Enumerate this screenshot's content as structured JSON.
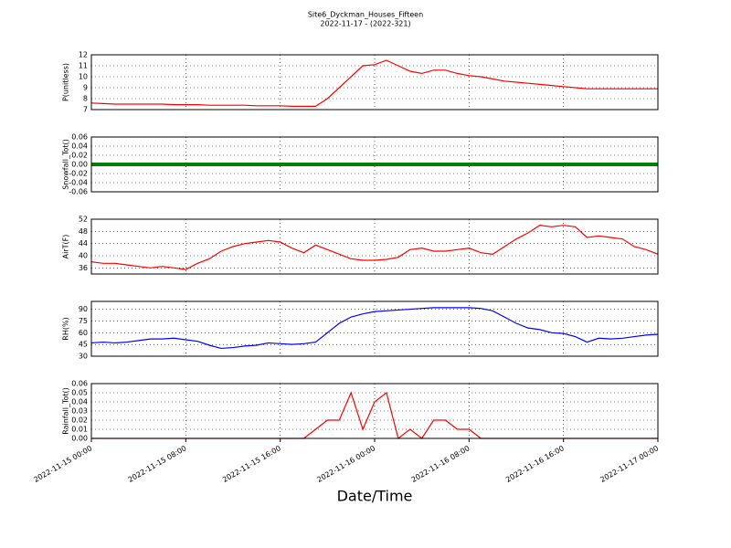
{
  "chart_data": [
    {
      "type": "line",
      "title": "Site6_Dyckman_Houses_Fifteen",
      "subtitle": "2022-11-17 - (2022-321)",
      "ylabel": "P(unitless)",
      "ylim": [
        7,
        12
      ],
      "yticks": [
        7,
        8,
        9,
        10,
        11,
        12
      ],
      "grid": true,
      "x": [
        "2022-11-15 00:00",
        "2022-11-15 01:00",
        "2022-11-15 02:00",
        "2022-11-15 03:00",
        "2022-11-15 04:00",
        "2022-11-15 05:00",
        "2022-11-15 06:00",
        "2022-11-15 07:00",
        "2022-11-15 08:00",
        "2022-11-15 09:00",
        "2022-11-15 10:00",
        "2022-11-15 11:00",
        "2022-11-15 12:00",
        "2022-11-15 13:00",
        "2022-11-15 14:00",
        "2022-11-15 15:00",
        "2022-11-15 16:00",
        "2022-11-15 17:00",
        "2022-11-15 18:00",
        "2022-11-15 19:00",
        "2022-11-15 20:00",
        "2022-11-15 21:00",
        "2022-11-15 22:00",
        "2022-11-15 23:00",
        "2022-11-16 00:00",
        "2022-11-16 01:00",
        "2022-11-16 02:00",
        "2022-11-16 03:00",
        "2022-11-16 04:00",
        "2022-11-16 05:00",
        "2022-11-16 06:00",
        "2022-11-16 07:00",
        "2022-11-16 08:00",
        "2022-11-16 09:00",
        "2022-11-16 10:00",
        "2022-11-16 11:00",
        "2022-11-16 12:00",
        "2022-11-16 13:00",
        "2022-11-16 14:00",
        "2022-11-16 15:00",
        "2022-11-16 16:00",
        "2022-11-16 17:00",
        "2022-11-16 18:00",
        "2022-11-16 19:00",
        "2022-11-16 20:00",
        "2022-11-16 21:00",
        "2022-11-16 22:00",
        "2022-11-16 23:00",
        "2022-11-17 00:00"
      ],
      "series": [
        {
          "color": "#ff0000",
          "values": [
            7.6,
            7.55,
            7.5,
            7.5,
            7.5,
            7.5,
            7.5,
            7.45,
            7.45,
            7.45,
            7.4,
            7.4,
            7.4,
            7.4,
            7.35,
            7.35,
            7.35,
            7.3,
            7.3,
            7.3,
            8.0,
            9.0,
            10.0,
            11.0,
            11.1,
            11.5,
            11.0,
            10.5,
            10.3,
            10.6,
            10.6,
            10.3,
            10.1,
            10.0,
            9.8,
            9.6,
            9.5,
            9.4,
            9.3,
            9.2,
            9.1,
            9.0,
            8.9,
            8.9,
            8.9,
            8.9,
            8.9,
            8.9,
            8.9
          ]
        }
      ]
    },
    {
      "type": "line",
      "ylabel": "Snowfall_Tot()",
      "ylim": [
        -0.06,
        0.06
      ],
      "yticks": [
        {
          "value": -0.06,
          "label": "-0.06"
        },
        {
          "value": -0.04,
          "label": "-0.04"
        },
        {
          "value": -0.02,
          "label": "-0.02"
        },
        {
          "value": 0,
          "label": "0.00"
        },
        {
          "value": 0.02,
          "label": "0.02"
        },
        {
          "value": 0.04,
          "label": "0.04"
        },
        {
          "value": 0.06,
          "label": "0.06"
        }
      ],
      "grid": true,
      "x": [
        "2022-11-15 00:00",
        "2022-11-15 01:00",
        "2022-11-15 02:00",
        "2022-11-15 03:00",
        "2022-11-15 04:00",
        "2022-11-15 05:00",
        "2022-11-15 06:00",
        "2022-11-15 07:00",
        "2022-11-15 08:00",
        "2022-11-15 09:00",
        "2022-11-15 10:00",
        "2022-11-15 11:00",
        "2022-11-15 12:00",
        "2022-11-15 13:00",
        "2022-11-15 14:00",
        "2022-11-15 15:00",
        "2022-11-15 16:00",
        "2022-11-15 17:00",
        "2022-11-15 18:00",
        "2022-11-15 19:00",
        "2022-11-15 20:00",
        "2022-11-15 21:00",
        "2022-11-15 22:00",
        "2022-11-15 23:00",
        "2022-11-16 00:00",
        "2022-11-16 01:00",
        "2022-11-16 02:00",
        "2022-11-16 03:00",
        "2022-11-16 04:00",
        "2022-11-16 05:00",
        "2022-11-16 06:00",
        "2022-11-16 07:00",
        "2022-11-16 08:00",
        "2022-11-16 09:00",
        "2022-11-16 10:00",
        "2022-11-16 11:00",
        "2022-11-16 12:00",
        "2022-11-16 13:00",
        "2022-11-16 14:00",
        "2022-11-16 15:00",
        "2022-11-16 16:00",
        "2022-11-16 17:00",
        "2022-11-16 18:00",
        "2022-11-16 19:00",
        "2022-11-16 20:00",
        "2022-11-16 21:00",
        "2022-11-16 22:00",
        "2022-11-16 23:00",
        "2022-11-17 00:00"
      ],
      "series": [
        {
          "color": "#008000",
          "values": [
            0,
            0,
            0,
            0,
            0,
            0,
            0,
            0,
            0,
            0,
            0,
            0,
            0,
            0,
            0,
            0,
            0,
            0,
            0,
            0,
            0,
            0,
            0,
            0,
            0,
            0,
            0,
            0,
            0,
            0,
            0,
            0,
            0,
            0,
            0,
            0,
            0,
            0,
            0,
            0,
            0,
            0,
            0,
            0,
            0,
            0,
            0,
            0,
            0
          ]
        }
      ]
    },
    {
      "type": "line",
      "ylabel": "AirT(F)",
      "ylim": [
        34,
        52
      ],
      "yticks": [
        36,
        40,
        44,
        48,
        52
      ],
      "grid": true,
      "x": [
        "2022-11-15 00:00",
        "2022-11-15 01:00",
        "2022-11-15 02:00",
        "2022-11-15 03:00",
        "2022-11-15 04:00",
        "2022-11-15 05:00",
        "2022-11-15 06:00",
        "2022-11-15 07:00",
        "2022-11-15 08:00",
        "2022-11-15 09:00",
        "2022-11-15 10:00",
        "2022-11-15 11:00",
        "2022-11-15 12:00",
        "2022-11-15 13:00",
        "2022-11-15 14:00",
        "2022-11-15 15:00",
        "2022-11-15 16:00",
        "2022-11-15 17:00",
        "2022-11-15 18:00",
        "2022-11-15 19:00",
        "2022-11-15 20:00",
        "2022-11-15 21:00",
        "2022-11-15 22:00",
        "2022-11-15 23:00",
        "2022-11-16 00:00",
        "2022-11-16 01:00",
        "2022-11-16 02:00",
        "2022-11-16 03:00",
        "2022-11-16 04:00",
        "2022-11-16 05:00",
        "2022-11-16 06:00",
        "2022-11-16 07:00",
        "2022-11-16 08:00",
        "2022-11-16 09:00",
        "2022-11-16 10:00",
        "2022-11-16 11:00",
        "2022-11-16 12:00",
        "2022-11-16 13:00",
        "2022-11-16 14:00",
        "2022-11-16 15:00",
        "2022-11-16 16:00",
        "2022-11-16 17:00",
        "2022-11-16 18:00",
        "2022-11-16 19:00",
        "2022-11-16 20:00",
        "2022-11-16 21:00",
        "2022-11-16 22:00",
        "2022-11-16 23:00",
        "2022-11-17 00:00"
      ],
      "series": [
        {
          "color": "#ff0000",
          "values": [
            38,
            37.5,
            37.5,
            37,
            36.5,
            36,
            36.5,
            36,
            35.5,
            37.5,
            39,
            41.5,
            43,
            44,
            44.5,
            45,
            44.5,
            42.5,
            41,
            43.5,
            42,
            40.5,
            39,
            38.5,
            38.5,
            38.8,
            39.5,
            42,
            42.5,
            41.5,
            41.5,
            42,
            42.5,
            41,
            40.5,
            43,
            45.5,
            47.5,
            50,
            49.5,
            50,
            49.5,
            46,
            46.5,
            46,
            45.5,
            43,
            42,
            40.5
          ]
        }
      ]
    },
    {
      "type": "line",
      "ylabel": "RH(%)",
      "ylim": [
        30,
        100
      ],
      "yticks": [
        30,
        45,
        60,
        75,
        90
      ],
      "grid": true,
      "x": [
        "2022-11-15 00:00",
        "2022-11-15 01:00",
        "2022-11-15 02:00",
        "2022-11-15 03:00",
        "2022-11-15 04:00",
        "2022-11-15 05:00",
        "2022-11-15 06:00",
        "2022-11-15 07:00",
        "2022-11-15 08:00",
        "2022-11-15 09:00",
        "2022-11-15 10:00",
        "2022-11-15 11:00",
        "2022-11-15 12:00",
        "2022-11-15 13:00",
        "2022-11-15 14:00",
        "2022-11-15 15:00",
        "2022-11-15 16:00",
        "2022-11-15 17:00",
        "2022-11-15 18:00",
        "2022-11-15 19:00",
        "2022-11-15 20:00",
        "2022-11-15 21:00",
        "2022-11-15 22:00",
        "2022-11-15 23:00",
        "2022-11-16 00:00",
        "2022-11-16 01:00",
        "2022-11-16 02:00",
        "2022-11-16 03:00",
        "2022-11-16 04:00",
        "2022-11-16 05:00",
        "2022-11-16 06:00",
        "2022-11-16 07:00",
        "2022-11-16 08:00",
        "2022-11-16 09:00",
        "2022-11-16 10:00",
        "2022-11-16 11:00",
        "2022-11-16 12:00",
        "2022-11-16 13:00",
        "2022-11-16 14:00",
        "2022-11-16 15:00",
        "2022-11-16 16:00",
        "2022-11-16 17:00",
        "2022-11-16 18:00",
        "2022-11-16 19:00",
        "2022-11-16 20:00",
        "2022-11-16 21:00",
        "2022-11-16 22:00",
        "2022-11-16 23:00",
        "2022-11-17 00:00"
      ],
      "series": [
        {
          "color": "#0000ff",
          "values": [
            47,
            48,
            47,
            48,
            50,
            52,
            52,
            53,
            51,
            49,
            44,
            40,
            41,
            43,
            44,
            47,
            46,
            45,
            46,
            48,
            60,
            72,
            80,
            84,
            87,
            88,
            89,
            90,
            91,
            92,
            92,
            92,
            92,
            91,
            88,
            80,
            72,
            66,
            64,
            60,
            59,
            55,
            48,
            53,
            52,
            53,
            55,
            57,
            58
          ]
        }
      ]
    },
    {
      "type": "line",
      "ylabel": "Rainfall_Tot()",
      "xlabel": "Date/Time",
      "ylim": [
        0,
        0.06
      ],
      "yticks": [
        {
          "value": 0,
          "label": "0.00"
        },
        {
          "value": 0.01,
          "label": "0.01"
        },
        {
          "value": 0.02,
          "label": "0.02"
        },
        {
          "value": 0.03,
          "label": "0.03"
        },
        {
          "value": 0.04,
          "label": "0.04"
        },
        {
          "value": 0.05,
          "label": "0.05"
        },
        {
          "value": 0.06,
          "label": "0.06"
        }
      ],
      "grid": true,
      "xlim": [
        "2022-11-15 00:00",
        "2022-11-17 00:00"
      ],
      "xticks": [
        "2022-11-15 00:00",
        "2022-11-15 08:00",
        "2022-11-15 16:00",
        "2022-11-16 00:00",
        "2022-11-16 08:00",
        "2022-11-16 16:00",
        "2022-11-17 00:00"
      ],
      "x": [
        "2022-11-15 00:00",
        "2022-11-15 01:00",
        "2022-11-15 02:00",
        "2022-11-15 03:00",
        "2022-11-15 04:00",
        "2022-11-15 05:00",
        "2022-11-15 06:00",
        "2022-11-15 07:00",
        "2022-11-15 08:00",
        "2022-11-15 09:00",
        "2022-11-15 10:00",
        "2022-11-15 11:00",
        "2022-11-15 12:00",
        "2022-11-15 13:00",
        "2022-11-15 14:00",
        "2022-11-15 15:00",
        "2022-11-15 16:00",
        "2022-11-15 17:00",
        "2022-11-15 18:00",
        "2022-11-15 19:00",
        "2022-11-15 20:00",
        "2022-11-15 21:00",
        "2022-11-15 22:00",
        "2022-11-15 23:00",
        "2022-11-16 00:00",
        "2022-11-16 01:00",
        "2022-11-16 02:00",
        "2022-11-16 03:00",
        "2022-11-16 04:00",
        "2022-11-16 05:00",
        "2022-11-16 06:00",
        "2022-11-16 07:00",
        "2022-11-16 08:00",
        "2022-11-16 09:00",
        "2022-11-16 10:00",
        "2022-11-16 11:00",
        "2022-11-16 12:00",
        "2022-11-16 13:00",
        "2022-11-16 14:00",
        "2022-11-16 15:00",
        "2022-11-16 16:00",
        "2022-11-16 17:00",
        "2022-11-16 18:00",
        "2022-11-16 19:00",
        "2022-11-16 20:00",
        "2022-11-16 21:00",
        "2022-11-16 22:00",
        "2022-11-16 23:00",
        "2022-11-17 00:00"
      ],
      "series": [
        {
          "color": "#ff0000",
          "values": [
            0,
            0,
            0,
            0,
            0,
            0,
            0,
            0,
            0,
            0,
            0,
            0,
            0,
            0,
            0,
            0,
            0,
            0,
            0,
            0.01,
            0.02,
            0.02,
            0.05,
            0.01,
            0.04,
            0.05,
            0,
            0.01,
            0,
            0.02,
            0.02,
            0.01,
            0.01,
            0,
            0,
            0,
            0,
            0,
            0,
            0,
            0,
            0,
            0,
            0,
            0,
            0,
            0,
            0,
            0
          ]
        }
      ]
    }
  ]
}
